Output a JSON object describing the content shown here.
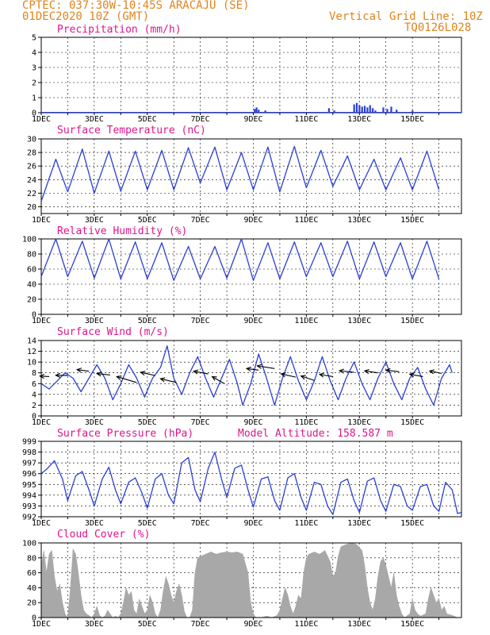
{
  "header": {
    "line1": "CPTEC:   037:30W-10:45S   ARACAJU (SE)",
    "line2": "01DEC2020 10Z (GMT)",
    "right1": "Vertical Grid Line: 10Z",
    "right2": "TQ0126L028"
  },
  "date_labels": [
    "1DEC",
    "3DEC",
    "5DEC",
    "7DEC",
    "9DEC",
    "11DEC",
    "13DEC",
    "15DEC"
  ],
  "colors": {
    "title": "#e0148c",
    "header": "#e0841c",
    "line": "#2a3fd6",
    "cloud": "#a8a8a8",
    "grid": "#000000"
  },
  "chart_data": [
    {
      "type": "bar",
      "title": "Precipitation (mm/h)",
      "ylim": [
        0,
        5
      ],
      "yticks": [
        0,
        1,
        2,
        3,
        4,
        5
      ],
      "x_unit": "day since 01DEC 10Z",
      "bars": [
        {
          "x": 8.05,
          "y": 0.25
        },
        {
          "x": 8.12,
          "y": 0.35
        },
        {
          "x": 8.2,
          "y": 0.2
        },
        {
          "x": 8.45,
          "y": 0.15
        },
        {
          "x": 10.85,
          "y": 0.3
        },
        {
          "x": 11.05,
          "y": 0.15
        },
        {
          "x": 11.8,
          "y": 0.55
        },
        {
          "x": 11.9,
          "y": 0.65
        },
        {
          "x": 12.0,
          "y": 0.5
        },
        {
          "x": 12.1,
          "y": 0.4
        },
        {
          "x": 12.2,
          "y": 0.45
        },
        {
          "x": 12.3,
          "y": 0.35
        },
        {
          "x": 12.4,
          "y": 0.5
        },
        {
          "x": 12.5,
          "y": 0.3
        },
        {
          "x": 12.6,
          "y": 0.15
        },
        {
          "x": 12.9,
          "y": 0.35
        },
        {
          "x": 13.05,
          "y": 0.25
        },
        {
          "x": 13.2,
          "y": 0.4
        },
        {
          "x": 13.4,
          "y": 0.2
        },
        {
          "x": 14.0,
          "y": 0.15
        }
      ]
    },
    {
      "type": "line",
      "title": "Surface Temperature (nC)",
      "ylim": [
        19,
        30
      ],
      "yticks": [
        20,
        22,
        24,
        26,
        28,
        30
      ],
      "x_unit": "day since 01DEC 10Z",
      "daily_max": [
        27,
        28.5,
        28.2,
        28.2,
        28.3,
        28.7,
        28.8,
        28,
        28.8,
        28.9,
        28.3,
        27.5,
        27,
        27.2,
        28.2
      ],
      "daily_min": [
        20.8,
        22.2,
        22,
        22.3,
        22.5,
        22.5,
        23.5,
        22.5,
        22.5,
        22.2,
        22.8,
        23,
        22.5,
        22.5,
        22.5
      ]
    },
    {
      "type": "line",
      "title": "Relative Humidity (%)",
      "ylim": [
        0,
        100
      ],
      "yticks": [
        0,
        20,
        40,
        60,
        80,
        100
      ],
      "x_unit": "day since 01DEC 10Z",
      "daily_max": [
        100,
        97,
        100,
        96,
        95,
        90,
        90,
        100,
        95,
        96,
        95,
        97,
        96,
        95,
        97
      ],
      "daily_min": [
        50,
        50,
        48,
        47,
        47,
        45,
        47,
        48,
        45,
        47,
        50,
        50,
        47,
        50,
        47
      ]
    },
    {
      "type": "line",
      "title": "Surface Wind (m/s)",
      "ylim": [
        0,
        14
      ],
      "yticks": [
        0,
        2,
        4,
        6,
        8,
        10,
        12,
        14
      ],
      "x_unit": "day since 01DEC 10Z",
      "points": [
        [
          0,
          6
        ],
        [
          0.3,
          5
        ],
        [
          0.6,
          6.5
        ],
        [
          0.9,
          8
        ],
        [
          1.2,
          7
        ],
        [
          1.5,
          4.5
        ],
        [
          1.8,
          7
        ],
        [
          2.1,
          9.5
        ],
        [
          2.4,
          7
        ],
        [
          2.7,
          3
        ],
        [
          3.0,
          6
        ],
        [
          3.3,
          9.5
        ],
        [
          3.6,
          7
        ],
        [
          3.9,
          3.5
        ],
        [
          4.2,
          7
        ],
        [
          4.5,
          9
        ],
        [
          4.75,
          13
        ],
        [
          5.0,
          7
        ],
        [
          5.3,
          4
        ],
        [
          5.6,
          8
        ],
        [
          5.9,
          11
        ],
        [
          6.2,
          7
        ],
        [
          6.5,
          3.5
        ],
        [
          6.8,
          7
        ],
        [
          7.1,
          10.5
        ],
        [
          7.4,
          6
        ],
        [
          7.6,
          2
        ],
        [
          7.9,
          6
        ],
        [
          8.2,
          11.5
        ],
        [
          8.5,
          7
        ],
        [
          8.8,
          2
        ],
        [
          9.1,
          7
        ],
        [
          9.4,
          11
        ],
        [
          9.7,
          6.5
        ],
        [
          10.0,
          3
        ],
        [
          10.3,
          6.5
        ],
        [
          10.6,
          11
        ],
        [
          10.9,
          6.5
        ],
        [
          11.2,
          3
        ],
        [
          11.5,
          7
        ],
        [
          11.8,
          10
        ],
        [
          12.1,
          6
        ],
        [
          12.4,
          3
        ],
        [
          12.7,
          7
        ],
        [
          13.0,
          10
        ],
        [
          13.3,
          6
        ],
        [
          13.6,
          3
        ],
        [
          13.9,
          7
        ],
        [
          14.2,
          9
        ],
        [
          14.5,
          5
        ],
        [
          14.8,
          2
        ],
        [
          15.1,
          7
        ],
        [
          15.4,
          9.5
        ],
        [
          15.5,
          8
        ]
      ],
      "arrows": [
        {
          "x": 0.3,
          "y": 7.3,
          "dx": -0.35,
          "dy": 0.1
        },
        {
          "x": 1.0,
          "y": 7.5,
          "dx": -0.45,
          "dy": 0.05
        },
        {
          "x": 1.8,
          "y": 8.3,
          "dx": -0.45,
          "dy": 0.3
        },
        {
          "x": 2.6,
          "y": 7.6,
          "dx": -0.5,
          "dy": 0.25
        },
        {
          "x": 3.6,
          "y": 6.2,
          "dx": -0.75,
          "dy": 1.1
        },
        {
          "x": 4.3,
          "y": 7.5,
          "dx": -0.55,
          "dy": 0.6
        },
        {
          "x": 5.1,
          "y": 6.2,
          "dx": -0.6,
          "dy": 0.7
        },
        {
          "x": 6.3,
          "y": 7.8,
          "dx": -0.55,
          "dy": 0.5
        },
        {
          "x": 6.9,
          "y": 6.0,
          "dx": -0.45,
          "dy": 1.3
        },
        {
          "x": 8.2,
          "y": 8.5,
          "dx": -0.45,
          "dy": 0.3
        },
        {
          "x": 8.8,
          "y": 8.8,
          "dx": -0.65,
          "dy": 0.5
        },
        {
          "x": 9.6,
          "y": 7.2,
          "dx": -0.55,
          "dy": 0.6
        },
        {
          "x": 10.3,
          "y": 6.6,
          "dx": -0.5,
          "dy": 0.8
        },
        {
          "x": 11.0,
          "y": 7.3,
          "dx": -0.5,
          "dy": 0.4
        },
        {
          "x": 11.8,
          "y": 8.1,
          "dx": -0.55,
          "dy": 0.3
        },
        {
          "x": 12.7,
          "y": 8.0,
          "dx": -0.5,
          "dy": 0.35
        },
        {
          "x": 13.5,
          "y": 8.2,
          "dx": -0.5,
          "dy": 0.3
        },
        {
          "x": 14.4,
          "y": 7.3,
          "dx": -0.5,
          "dy": 0.45
        },
        {
          "x": 15.1,
          "y": 7.9,
          "dx": -0.45,
          "dy": 0.45
        }
      ]
    },
    {
      "type": "line",
      "title": "Surface Pressure (hPa)",
      "annotation": "Model Altitude: 158.587 m",
      "ylim": [
        992,
        999
      ],
      "yticks": [
        992,
        993,
        994,
        995,
        996,
        997,
        998,
        999
      ],
      "x_unit": "day since 01DEC 10Z",
      "points": [
        [
          0,
          996
        ],
        [
          0.2,
          996.4
        ],
        [
          0.5,
          997.2
        ],
        [
          0.8,
          995.5
        ],
        [
          1.0,
          993.5
        ],
        [
          1.3,
          995.8
        ],
        [
          1.55,
          996.2
        ],
        [
          1.8,
          994.5
        ],
        [
          2.0,
          993
        ],
        [
          2.3,
          995.5
        ],
        [
          2.55,
          996.6
        ],
        [
          2.8,
          994.5
        ],
        [
          3.0,
          993.2
        ],
        [
          3.3,
          995.2
        ],
        [
          3.55,
          995.6
        ],
        [
          3.8,
          994.2
        ],
        [
          4.0,
          992.8
        ],
        [
          4.3,
          995.5
        ],
        [
          4.55,
          996
        ],
        [
          4.8,
          994
        ],
        [
          5.0,
          993.2
        ],
        [
          5.3,
          997
        ],
        [
          5.55,
          997.5
        ],
        [
          5.8,
          994.5
        ],
        [
          6.0,
          993.4
        ],
        [
          6.3,
          996.5
        ],
        [
          6.55,
          998
        ],
        [
          6.8,
          995.5
        ],
        [
          7.0,
          993.8
        ],
        [
          7.3,
          996.5
        ],
        [
          7.55,
          996.8
        ],
        [
          7.8,
          994.5
        ],
        [
          8.0,
          992.9
        ],
        [
          8.3,
          995.5
        ],
        [
          8.55,
          995.7
        ],
        [
          8.8,
          993.5
        ],
        [
          9.0,
          992.6
        ],
        [
          9.3,
          995.6
        ],
        [
          9.55,
          996
        ],
        [
          9.8,
          993.8
        ],
        [
          10.0,
          992.6
        ],
        [
          10.3,
          995.2
        ],
        [
          10.55,
          995
        ],
        [
          10.8,
          993
        ],
        [
          11.0,
          992.2
        ],
        [
          11.3,
          995.2
        ],
        [
          11.55,
          995.5
        ],
        [
          11.8,
          993.5
        ],
        [
          12.0,
          992.4
        ],
        [
          12.3,
          995.3
        ],
        [
          12.55,
          995.6
        ],
        [
          12.8,
          993.5
        ],
        [
          13.0,
          992.5
        ],
        [
          13.3,
          995
        ],
        [
          13.55,
          994.8
        ],
        [
          13.8,
          993
        ],
        [
          14.0,
          992.6
        ],
        [
          14.3,
          994.8
        ],
        [
          14.55,
          995
        ],
        [
          14.8,
          993
        ],
        [
          15.0,
          992.5
        ],
        [
          15.25,
          995.2
        ],
        [
          15.5,
          994.5
        ],
        [
          15.7,
          992.3
        ],
        [
          15.85,
          992.4
        ]
      ]
    },
    {
      "type": "area",
      "title": "Cloud Cover (%)",
      "ylim": [
        0,
        100
      ],
      "yticks": [
        0,
        20,
        40,
        60,
        80,
        100
      ],
      "x_unit": "day since 01DEC 10Z",
      "points": [
        [
          0,
          70
        ],
        [
          0.1,
          90
        ],
        [
          0.2,
          60
        ],
        [
          0.3,
          85
        ],
        [
          0.4,
          90
        ],
        [
          0.5,
          55
        ],
        [
          0.6,
          35
        ],
        [
          0.7,
          45
        ],
        [
          0.8,
          20
        ],
        [
          0.9,
          5
        ],
        [
          1.0,
          0
        ],
        [
          1.1,
          40
        ],
        [
          1.2,
          92
        ],
        [
          1.3,
          85
        ],
        [
          1.4,
          60
        ],
        [
          1.5,
          30
        ],
        [
          1.6,
          10
        ],
        [
          1.7,
          5
        ],
        [
          1.8,
          3
        ],
        [
          1.9,
          0
        ],
        [
          2.0,
          5
        ],
        [
          2.1,
          15
        ],
        [
          2.2,
          3
        ],
        [
          2.3,
          0
        ],
        [
          2.4,
          2
        ],
        [
          2.5,
          10
        ],
        [
          2.6,
          5
        ],
        [
          2.7,
          0
        ],
        [
          2.8,
          2
        ],
        [
          2.9,
          0
        ],
        [
          3.0,
          5
        ],
        [
          3.1,
          20
        ],
        [
          3.2,
          40
        ],
        [
          3.3,
          30
        ],
        [
          3.4,
          35
        ],
        [
          3.5,
          10
        ],
        [
          3.6,
          5
        ],
        [
          3.7,
          25
        ],
        [
          3.8,
          15
        ],
        [
          3.9,
          5
        ],
        [
          4.0,
          10
        ],
        [
          4.1,
          30
        ],
        [
          4.2,
          20
        ],
        [
          4.3,
          5
        ],
        [
          4.4,
          0
        ],
        [
          4.5,
          10
        ],
        [
          4.6,
          35
        ],
        [
          4.7,
          55
        ],
        [
          4.8,
          45
        ],
        [
          4.9,
          30
        ],
        [
          5.0,
          20
        ],
        [
          5.1,
          35
        ],
        [
          5.2,
          45
        ],
        [
          5.3,
          30
        ],
        [
          5.4,
          8
        ],
        [
          5.5,
          0
        ],
        [
          5.6,
          0
        ],
        [
          5.7,
          10
        ],
        [
          5.8,
          60
        ],
        [
          5.9,
          80
        ],
        [
          6.0,
          82
        ],
        [
          6.2,
          85
        ],
        [
          6.4,
          88
        ],
        [
          6.6,
          85
        ],
        [
          6.8,
          87
        ],
        [
          7.0,
          88
        ],
        [
          7.2,
          87
        ],
        [
          7.4,
          88
        ],
        [
          7.6,
          85
        ],
        [
          7.8,
          60
        ],
        [
          7.9,
          20
        ],
        [
          8.0,
          5
        ],
        [
          8.1,
          0
        ],
        [
          8.3,
          0
        ],
        [
          8.5,
          2
        ],
        [
          8.7,
          0
        ],
        [
          8.9,
          3
        ],
        [
          9.0,
          10
        ],
        [
          9.1,
          25
        ],
        [
          9.2,
          40
        ],
        [
          9.3,
          30
        ],
        [
          9.4,
          15
        ],
        [
          9.5,
          5
        ],
        [
          9.6,
          15
        ],
        [
          9.7,
          30
        ],
        [
          9.8,
          25
        ],
        [
          9.9,
          60
        ],
        [
          10.0,
          80
        ],
        [
          10.1,
          85
        ],
        [
          10.3,
          88
        ],
        [
          10.5,
          85
        ],
        [
          10.7,
          90
        ],
        [
          10.9,
          75
        ],
        [
          11.0,
          55
        ],
        [
          11.1,
          60
        ],
        [
          11.2,
          82
        ],
        [
          11.3,
          95
        ],
        [
          11.5,
          98
        ],
        [
          11.7,
          100
        ],
        [
          11.9,
          98
        ],
        [
          12.1,
          90
        ],
        [
          12.2,
          70
        ],
        [
          12.3,
          40
        ],
        [
          12.4,
          20
        ],
        [
          12.5,
          10
        ],
        [
          12.6,
          25
        ],
        [
          12.7,
          55
        ],
        [
          12.8,
          75
        ],
        [
          12.9,
          80
        ],
        [
          13.0,
          70
        ],
        [
          13.1,
          55
        ],
        [
          13.2,
          40
        ],
        [
          13.3,
          60
        ],
        [
          13.4,
          30
        ],
        [
          13.5,
          15
        ],
        [
          13.6,
          5
        ],
        [
          13.7,
          0
        ],
        [
          13.9,
          5
        ],
        [
          14.0,
          25
        ],
        [
          14.1,
          10
        ],
        [
          14.2,
          5
        ],
        [
          14.3,
          2
        ],
        [
          14.5,
          5
        ],
        [
          14.6,
          25
        ],
        [
          14.7,
          40
        ],
        [
          14.8,
          30
        ],
        [
          14.9,
          20
        ],
        [
          15.0,
          25
        ],
        [
          15.1,
          10
        ],
        [
          15.2,
          15
        ],
        [
          15.3,
          5
        ],
        [
          15.5,
          3
        ],
        [
          15.7,
          0
        ],
        [
          15.85,
          0
        ]
      ]
    }
  ]
}
